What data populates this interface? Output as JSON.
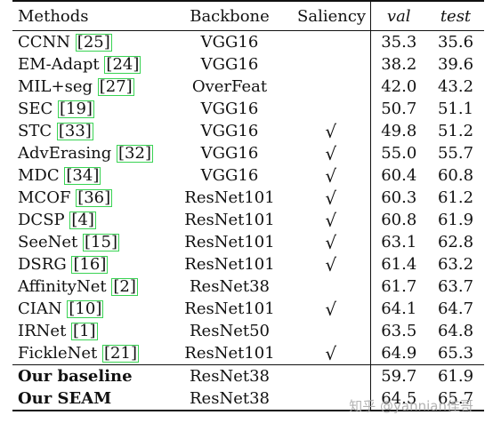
{
  "headers": {
    "methods": "Methods",
    "backbone": "Backbone",
    "saliency": "Saliency",
    "val": "val",
    "test": "test"
  },
  "rows": [
    {
      "method": "CCNN",
      "ref": "25",
      "backbone": "VGG16",
      "saliency": "",
      "val": "35.3",
      "test": "35.6"
    },
    {
      "method": "EM-Adapt",
      "ref": "24",
      "backbone": "VGG16",
      "saliency": "",
      "val": "38.2",
      "test": "39.6"
    },
    {
      "method": "MIL+seg",
      "ref": "27",
      "backbone": "OverFeat",
      "saliency": "",
      "val": "42.0",
      "test": "43.2"
    },
    {
      "method": "SEC",
      "ref": "19",
      "backbone": "VGG16",
      "saliency": "",
      "val": "50.7",
      "test": "51.1"
    },
    {
      "method": "STC",
      "ref": "33",
      "backbone": "VGG16",
      "saliency": "√",
      "val": "49.8",
      "test": "51.2"
    },
    {
      "method": "AdvErasing",
      "ref": "32",
      "backbone": "VGG16",
      "saliency": "√",
      "val": "55.0",
      "test": "55.7"
    },
    {
      "method": "MDC",
      "ref": "34",
      "backbone": "VGG16",
      "saliency": "√",
      "val": "60.4",
      "test": "60.8"
    },
    {
      "method": "MCOF",
      "ref": "36",
      "backbone": "ResNet101",
      "saliency": "√",
      "val": "60.3",
      "test": "61.2"
    },
    {
      "method": "DCSP",
      "ref": "4",
      "backbone": "ResNet101",
      "saliency": "√",
      "val": "60.8",
      "test": "61.9"
    },
    {
      "method": "SeeNet",
      "ref": "15",
      "backbone": "ResNet101",
      "saliency": "√",
      "val": "63.1",
      "test": "62.8"
    },
    {
      "method": "DSRG",
      "ref": "16",
      "backbone": "ResNet101",
      "saliency": "√",
      "val": "61.4",
      "test": "63.2"
    },
    {
      "method": "AffinityNet",
      "ref": "2",
      "backbone": "ResNet38",
      "saliency": "",
      "val": "61.7",
      "test": "63.7"
    },
    {
      "method": "CIAN",
      "ref": "10",
      "backbone": "ResNet101",
      "saliency": "√",
      "val": "64.1",
      "test": "64.7"
    },
    {
      "method": "IRNet",
      "ref": "1",
      "backbone": "ResNet50",
      "saliency": "",
      "val": "63.5",
      "test": "64.8"
    },
    {
      "method": "FickleNet",
      "ref": "21",
      "backbone": "ResNet101",
      "saliency": "√",
      "val": "64.9",
      "test": "65.3"
    }
  ],
  "ours": [
    {
      "method": "Our baseline",
      "backbone": "ResNet38",
      "val": "59.7",
      "test": "61.9"
    },
    {
      "method": "Our SEAM",
      "backbone": "ResNet38",
      "val": "64.5",
      "test": "65.7"
    }
  ],
  "watermark": "知乎 @yannian佳哥",
  "colors": {
    "ref_box": "#39d353",
    "text": "#111111"
  }
}
